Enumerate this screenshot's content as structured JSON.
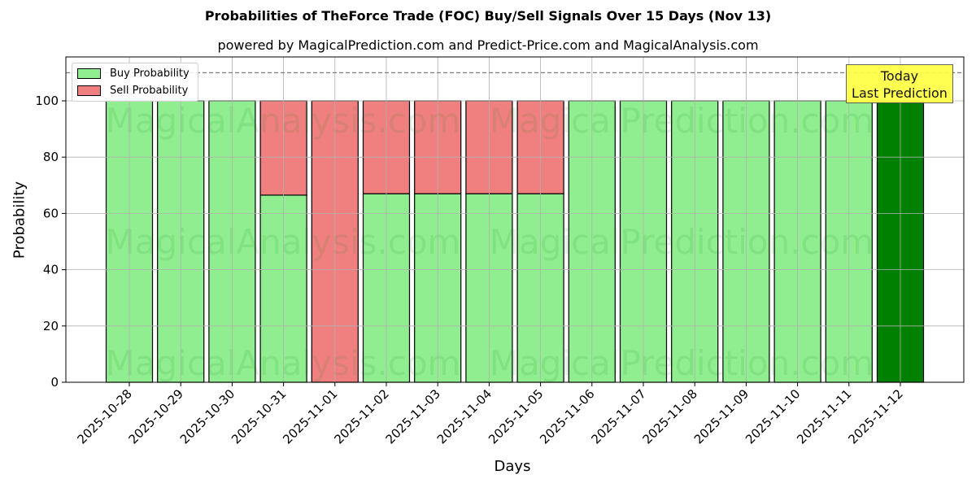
{
  "header": {
    "title": "Probabilities of TheForce Trade (FOC) Buy/Sell Signals Over 15 Days (Nov 13)",
    "subtitle": "powered by MagicalPrediction.com and Predict-Price.com and MagicalAnalysis.com"
  },
  "legend": {
    "buy_label": "Buy Probability",
    "sell_label": "Sell Probability"
  },
  "annotation": {
    "line1": "Today",
    "line2": "Last Prediction"
  },
  "watermarks": [
    "MagicalAnalysis.com",
    "MagicalPrediction.com"
  ],
  "colors": {
    "buy": "#90ee90",
    "sell": "#f08080",
    "today": "#008000",
    "annotation_bg": "#ffff44"
  },
  "chart_data": {
    "type": "bar",
    "stacked": true,
    "title": "Probabilities of TheForce Trade (FOC) Buy/Sell Signals Over 15 Days (Nov 13)",
    "subtitle": "powered by MagicalPrediction.com and Predict-Price.com and MagicalAnalysis.com",
    "xlabel": "Days",
    "ylabel": "Probability",
    "ylim": [
      0,
      115
    ],
    "yticks": [
      0,
      20,
      40,
      60,
      80,
      100
    ],
    "grid": true,
    "legend_position": "upper left",
    "reference_line": {
      "y": 110,
      "style": "dashed"
    },
    "categories": [
      "2025-10-28",
      "2025-10-29",
      "2025-10-30",
      "2025-10-31",
      "2025-11-01",
      "2025-11-02",
      "2025-11-03",
      "2025-11-04",
      "2025-11-05",
      "2025-11-06",
      "2025-11-07",
      "2025-11-08",
      "2025-11-09",
      "2025-11-10",
      "2025-11-11",
      "2025-11-12"
    ],
    "series": [
      {
        "name": "Buy Probability",
        "values": [
          100,
          100,
          100,
          66.5,
          0,
          67,
          67,
          67,
          67,
          100,
          100,
          100,
          100,
          100,
          100,
          100
        ]
      },
      {
        "name": "Sell Probability",
        "values": [
          0,
          0,
          0,
          33.5,
          100,
          33,
          33,
          33,
          33,
          0,
          0,
          0,
          0,
          0,
          0,
          0
        ]
      }
    ],
    "highlight": {
      "category": "2025-11-12",
      "label": "Today Last Prediction",
      "color": "#008000"
    }
  }
}
